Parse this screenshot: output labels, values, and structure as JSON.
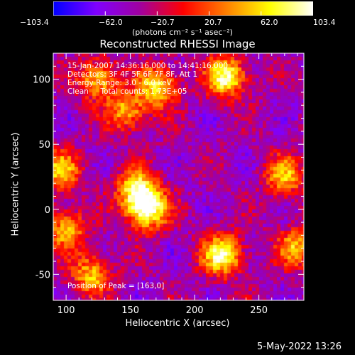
{
  "colorbar": {
    "ticks": [
      "−103.4",
      "−62.0",
      "−20.7",
      "20.7",
      "62.0",
      "103.4"
    ],
    "tick_values": [
      -103.4,
      -62.0,
      -20.7,
      20.7,
      62.0,
      103.4
    ],
    "label": "(photons cm⁻² s⁻¹ asec⁻²)",
    "colormap": [
      "#0000ff",
      "#8000ff",
      "#a000a0",
      "#ff0000",
      "#ff8000",
      "#ffff00",
      "#ffffff"
    ]
  },
  "chart_data": {
    "type": "heatmap",
    "title": "Reconstructed RHESSI Image",
    "xlabel": "Heliocentric X (arcsec)",
    "ylabel": "Heliocentric Y (arcsec)",
    "xlim": [
      90,
      285
    ],
    "ylim": [
      -70,
      120
    ],
    "x_ticks": [
      100,
      150,
      200,
      250
    ],
    "y_ticks": [
      -50,
      0,
      50,
      100
    ],
    "zlim": [
      -103.4,
      103.4
    ],
    "annotations": {
      "time_range": "15-Jan-2007 14:36:16.000 to 14:41:16.000",
      "detectors": "Detectors: 3F 4F 5F 6F 7F 8F, Att 1",
      "energy": "Energy Range: 3.0 - 6.0 keV",
      "method_counts": "Clean     Total counts: 1.73E+05",
      "peak": "Position of Peak = [163,0]"
    },
    "sources": [
      {
        "x": 163,
        "y": 0,
        "amplitude": 103
      },
      {
        "x": 222,
        "y": -35,
        "amplitude": 95
      },
      {
        "x": 225,
        "y": 102,
        "amplitude": 92
      },
      {
        "x": 172,
        "y": 95,
        "amplitude": 70
      },
      {
        "x": 125,
        "y": 100,
        "amplitude": 60
      },
      {
        "x": 155,
        "y": 15,
        "amplitude": 70
      },
      {
        "x": 95,
        "y": 30,
        "amplitude": 55
      },
      {
        "x": 148,
        "y": 75,
        "amplitude": 50
      },
      {
        "x": 270,
        "y": 25,
        "amplitude": 50
      },
      {
        "x": 280,
        "y": -30,
        "amplitude": 50
      },
      {
        "x": 120,
        "y": -50,
        "amplitude": 55
      },
      {
        "x": 100,
        "y": -15,
        "amplitude": 50
      }
    ]
  },
  "footer": {
    "date": "5-May-2022 13:26"
  }
}
